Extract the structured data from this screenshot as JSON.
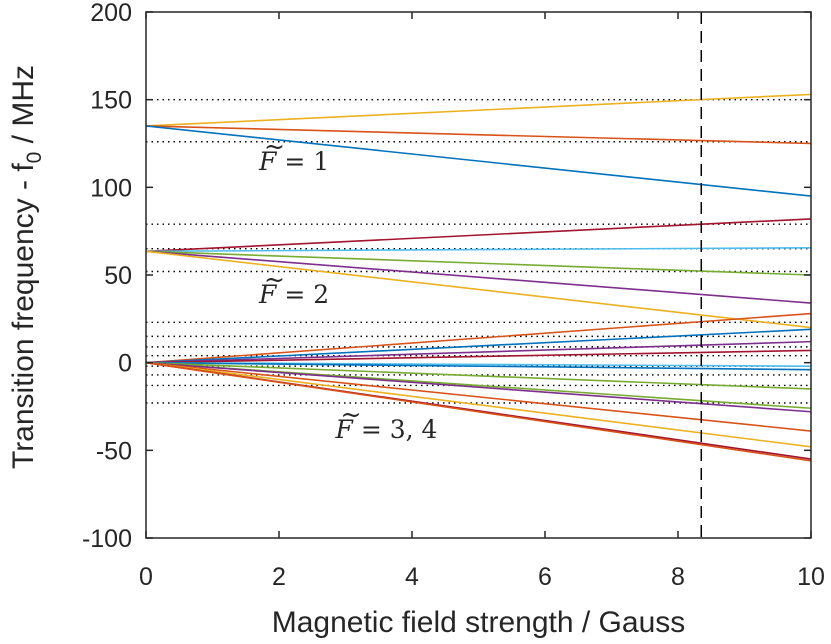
{
  "chart_data": {
    "type": "line",
    "title": "",
    "xlabel": "Magnetic field strength / Gauss",
    "ylabel": "Transition frequency - f",
    "ylabel_subscript": "0",
    "ylabel_suffix": " / MHz",
    "xlim": [
      0,
      10
    ],
    "ylim": [
      -100,
      200
    ],
    "x_ticks": [
      0,
      2,
      4,
      6,
      8,
      10
    ],
    "y_ticks": [
      -100,
      -50,
      0,
      50,
      100,
      150,
      200
    ],
    "grid": false,
    "legend": "none",
    "x": [
      0,
      10
    ],
    "series": [
      {
        "color": "#EDB120",
        "values": [
          135,
          153
        ]
      },
      {
        "color": "#D95319",
        "values": [
          135,
          125
        ]
      },
      {
        "color": "#0072BD",
        "values": [
          135,
          95
        ]
      },
      {
        "color": "#A2142F",
        "values": [
          63.5,
          82
        ]
      },
      {
        "color": "#4DBEEE",
        "values": [
          63.5,
          65.5
        ]
      },
      {
        "color": "#77AC30",
        "values": [
          63.5,
          50
        ]
      },
      {
        "color": "#7E2F8E",
        "values": [
          63.5,
          34
        ]
      },
      {
        "color": "#EDB120",
        "values": [
          63.5,
          20
        ]
      },
      {
        "color": "#D95319",
        "values": [
          0,
          28
        ]
      },
      {
        "color": "#0072BD",
        "values": [
          0,
          19
        ]
      },
      {
        "color": "#7E2F8E",
        "values": [
          0,
          12
        ]
      },
      {
        "color": "#A2142F",
        "values": [
          0,
          7
        ]
      },
      {
        "color": "#4DBEEE",
        "values": [
          0,
          -2
        ]
      },
      {
        "color": "#0072BD",
        "values": [
          0,
          -4
        ]
      },
      {
        "color": "#77AC30",
        "values": [
          0,
          -15
        ]
      },
      {
        "color": "#77AC30",
        "values": [
          0,
          -26
        ]
      },
      {
        "color": "#7E2F8E",
        "values": [
          0,
          -28
        ]
      },
      {
        "color": "#D95319",
        "values": [
          0,
          -39
        ]
      },
      {
        "color": "#EDB120",
        "values": [
          0,
          -48
        ]
      },
      {
        "color": "#A2142F",
        "values": [
          0,
          -55
        ]
      },
      {
        "color": "#D95319",
        "values": [
          0,
          -56
        ]
      }
    ],
    "reference_lines_y": [
      150,
      126,
      79,
      65,
      52,
      23,
      15,
      9,
      4,
      -2,
      -7,
      -13,
      -23
    ],
    "reference_lines_style": "dotted",
    "vertical_line_x": 8.35,
    "vertical_line_style": "dashed",
    "annotations": [
      {
        "text_main": "F",
        "text_rest": " = 1",
        "x": 1.7,
        "y": 110
      },
      {
        "text_main": "F",
        "text_rest": " = 2",
        "x": 1.7,
        "y": 34
      },
      {
        "text_main": "F",
        "text_rest": " = 3, 4",
        "x": 2.85,
        "y": -43
      }
    ]
  }
}
